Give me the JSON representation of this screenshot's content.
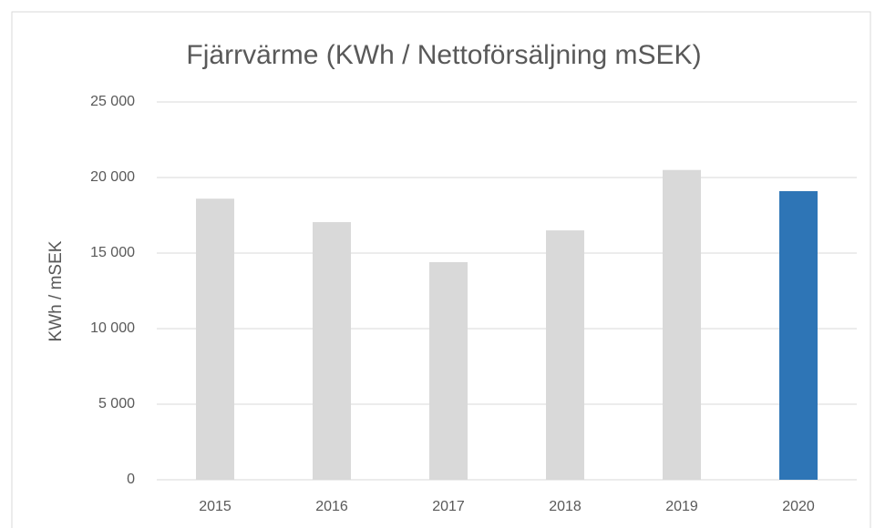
{
  "chart_data": {
    "type": "bar",
    "title": "Fjärrvärme (KWh / Nettoförsäljning mSEK)",
    "y_label": "KWh / mSEK",
    "categories": [
      "2015",
      "2016",
      "2017",
      "2018",
      "2019",
      "2020"
    ],
    "values": [
      18600,
      17050,
      14400,
      16500,
      20500,
      19100
    ],
    "colors": [
      "#d9d9d9",
      "#d9d9d9",
      "#d9d9d9",
      "#d9d9d9",
      "#d9d9d9",
      "#2e75b6"
    ],
    "ylim": [
      0,
      25000
    ],
    "yticks": [
      0,
      {
        "value": 5000,
        "label": "5 000"
      },
      {
        "value": 10000,
        "label": "10 000"
      },
      {
        "value": 15000,
        "label": "15 000"
      },
      {
        "value": 20000,
        "label": "20 000"
      },
      {
        "value": 25000,
        "label": "25 000"
      }
    ],
    "grid": true
  }
}
